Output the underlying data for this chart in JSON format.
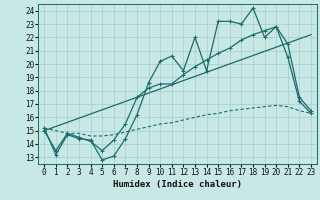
{
  "xlabel": "Humidex (Indice chaleur)",
  "xlim": [
    -0.5,
    23.5
  ],
  "ylim": [
    12.5,
    24.5
  ],
  "xticks": [
    0,
    1,
    2,
    3,
    4,
    5,
    6,
    7,
    8,
    9,
    10,
    11,
    12,
    13,
    14,
    15,
    16,
    17,
    18,
    19,
    20,
    21,
    22,
    23
  ],
  "yticks": [
    13,
    14,
    15,
    16,
    17,
    18,
    19,
    20,
    21,
    22,
    23,
    24
  ],
  "bg_color": "#c8e8e5",
  "line_color": "#1a6b6b",
  "grid_color": "#a8ccca",
  "line1_x": [
    0,
    1,
    2,
    3,
    4,
    5,
    6,
    7,
    8,
    9,
    10,
    11,
    12,
    13,
    14,
    15,
    16,
    17,
    18,
    19,
    20,
    21,
    22,
    23
  ],
  "line1_y": [
    15.2,
    13.2,
    14.7,
    14.4,
    14.3,
    12.8,
    13.1,
    14.4,
    16.2,
    18.6,
    20.2,
    20.6,
    19.5,
    22.0,
    19.5,
    23.2,
    23.2,
    23.0,
    24.2,
    22.0,
    22.8,
    20.5,
    17.2,
    16.3
  ],
  "line2_x": [
    0,
    1,
    2,
    3,
    4,
    5,
    6,
    7,
    8,
    9,
    10,
    11,
    12,
    13,
    14,
    15,
    16,
    17,
    18,
    19,
    20,
    21,
    22,
    23
  ],
  "line2_y": [
    15.0,
    13.5,
    14.8,
    14.5,
    14.2,
    13.5,
    14.3,
    15.5,
    17.5,
    18.2,
    18.5,
    18.5,
    19.2,
    19.8,
    20.3,
    20.8,
    21.2,
    21.8,
    22.2,
    22.5,
    22.8,
    21.5,
    17.5,
    16.5
  ],
  "line3_x": [
    0,
    23
  ],
  "line3_y": [
    15.0,
    22.2
  ],
  "line4_x": [
    0,
    1,
    2,
    3,
    4,
    5,
    6,
    7,
    8,
    9,
    10,
    11,
    12,
    13,
    14,
    15,
    16,
    17,
    18,
    19,
    20,
    21,
    22,
    23
  ],
  "line4_y": [
    15.2,
    15.0,
    14.8,
    14.8,
    14.6,
    14.6,
    14.7,
    14.9,
    15.1,
    15.3,
    15.5,
    15.6,
    15.8,
    16.0,
    16.2,
    16.3,
    16.5,
    16.6,
    16.7,
    16.8,
    16.9,
    16.8,
    16.5,
    16.3
  ]
}
